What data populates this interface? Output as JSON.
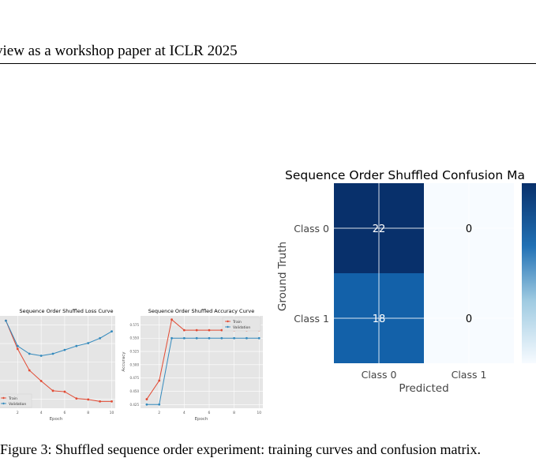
{
  "header": {
    "text": "view as a workshop paper at ICLR 2025"
  },
  "caption": {
    "text": "Figure 3: Shuffled sequence order experiment: training curves and confusion matrix."
  },
  "chart_data": [
    {
      "type": "line",
      "title": "Sequence Order Shuffled Loss Curve",
      "xlabel": "Epoch",
      "ylabel": "",
      "xlim": [
        0.5,
        10.3
      ],
      "ylim": [
        0.62,
        0.715
      ],
      "xticks": [
        2,
        4,
        6,
        8,
        10
      ],
      "grid": true,
      "legend": "bottom-left",
      "x": [
        1,
        2,
        3,
        4,
        5,
        6,
        7,
        8,
        9,
        10
      ],
      "series": [
        {
          "name": "Train",
          "color": "#E24A33",
          "values": [
            0.71,
            0.681,
            0.659,
            0.648,
            0.638,
            0.637,
            0.63,
            0.629,
            0.627,
            0.627
          ]
        },
        {
          "name": "Validation",
          "color": "#348ABD",
          "values": [
            0.71,
            0.684,
            0.676,
            0.674,
            0.676,
            0.68,
            0.684,
            0.687,
            0.692,
            0.699
          ]
        }
      ]
    },
    {
      "type": "line",
      "title": "Sequence Order Shuffled Accuracy Curve",
      "xlabel": "Epoch",
      "ylabel": "Accuracy",
      "xlim": [
        0.5,
        10.3
      ],
      "ylim": [
        0.418,
        0.592
      ],
      "xticks": [
        2,
        4,
        6,
        8,
        10
      ],
      "yticks": [
        0.425,
        0.45,
        0.475,
        0.5,
        0.525,
        0.55,
        0.575
      ],
      "yticklabels": [
        "0.425",
        "0.450",
        "0.475",
        "0.500",
        "0.525",
        "0.550",
        "0.575"
      ],
      "grid": true,
      "legend": "top-right",
      "x": [
        1,
        2,
        3,
        4,
        5,
        6,
        7,
        8,
        9,
        10
      ],
      "series": [
        {
          "name": "Train",
          "color": "#E24A33",
          "values": [
            0.435,
            0.47,
            0.585,
            0.565,
            0.565,
            0.565,
            0.565,
            0.565,
            0.565,
            0.565
          ]
        },
        {
          "name": "Validation",
          "color": "#348ABD",
          "values": [
            0.425,
            0.425,
            0.55,
            0.55,
            0.55,
            0.55,
            0.55,
            0.55,
            0.55,
            0.55
          ]
        }
      ]
    },
    {
      "type": "heatmap",
      "title": "Sequence Order Shuffled Confusion Ma",
      "xlabel": "Predicted",
      "ylabel": "Ground Truth",
      "rows": [
        "Class 0",
        "Class 1"
      ],
      "cols": [
        "Class 0",
        "Class 1"
      ],
      "values": [
        [
          22,
          0
        ],
        [
          18,
          0
        ]
      ],
      "cell_colors": [
        [
          "#08306B",
          "#F7FBFF"
        ],
        [
          "#1361A9",
          "#F7FBFF"
        ]
      ],
      "label_colors": [
        [
          "#ffffff",
          "#000000"
        ],
        [
          "#ffffff",
          "#000000"
        ]
      ]
    }
  ]
}
